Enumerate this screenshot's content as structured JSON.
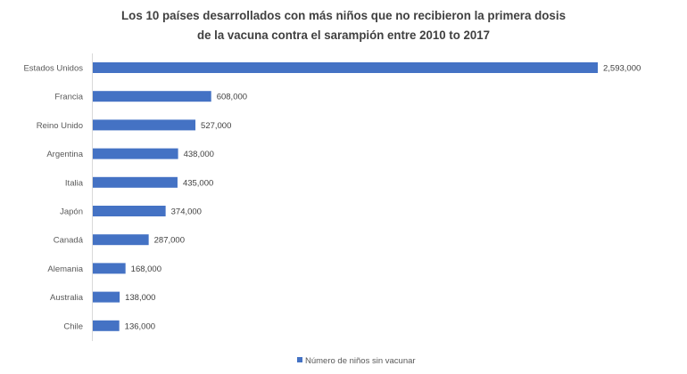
{
  "chart_data": {
    "type": "bar",
    "orientation": "horizontal",
    "title": [
      "Los 10 países desarrollados con más niños que no recibieron la primera dosis",
      "de la vacuna contra el sarampión entre 2010 to 2017"
    ],
    "categories": [
      "Estados Unidos",
      "Francia",
      "Reino Unido",
      "Argentina",
      "Italia",
      "Japón",
      "Canadá",
      "Alemania",
      "Australia",
      "Chile"
    ],
    "series": [
      {
        "name": "Número de niños sin vacunar",
        "values": [
          2593000,
          608000,
          527000,
          438000,
          435000,
          374000,
          287000,
          168000,
          138000,
          136000
        ],
        "value_labels": [
          "2,593,000",
          "608,000",
          "527,000",
          "438,000",
          "435,000",
          "374,000",
          "287,000",
          "168,000",
          "138,000",
          "136,000"
        ]
      }
    ],
    "colors": {
      "bar": "#4472C4",
      "title": "#404040",
      "labels": "#595959",
      "axis": "#d9d9d9"
    },
    "legend_position": "bottom",
    "grid": false,
    "data_labels": true
  }
}
